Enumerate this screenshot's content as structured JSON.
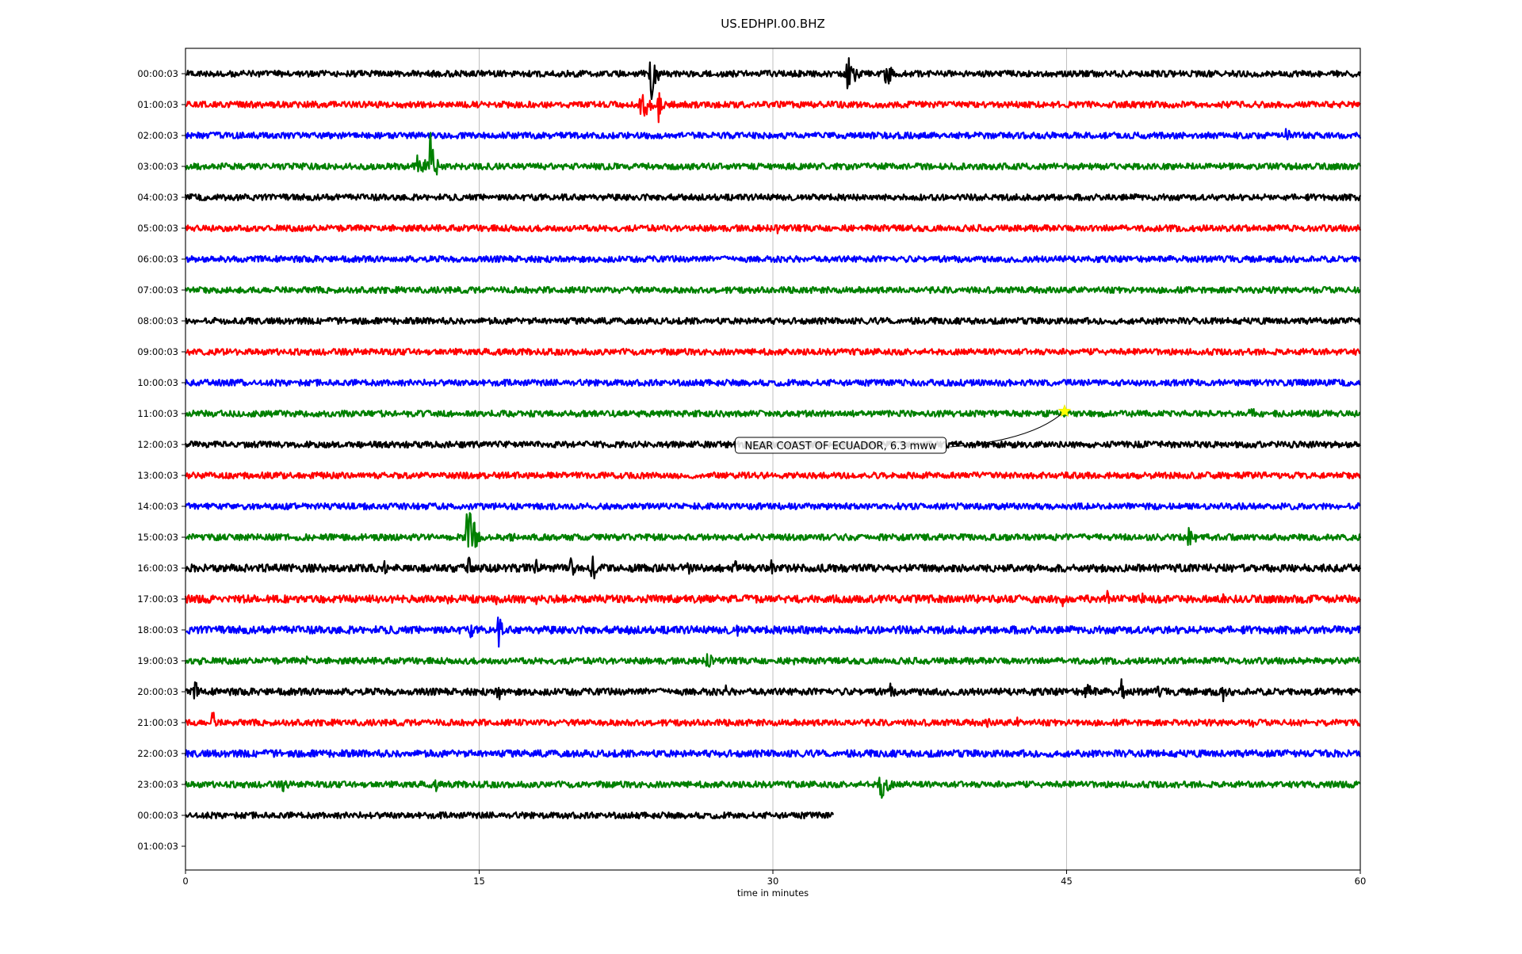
{
  "chart_data": {
    "type": "line",
    "title": "US.EDHPI.00.BHZ",
    "xlabel": "time in minutes",
    "ylabel": "",
    "xlim": [
      0,
      60
    ],
    "xticks": [
      0,
      15,
      30,
      45,
      60
    ],
    "xtick_labels": [
      "0",
      "15",
      "30",
      "45",
      "60"
    ],
    "grid_x": true,
    "legend": "none",
    "row_labels": [
      "00:00:03",
      "01:00:03",
      "02:00:03",
      "03:00:03",
      "04:00:03",
      "05:00:03",
      "06:00:03",
      "07:00:03",
      "08:00:03",
      "09:00:03",
      "10:00:03",
      "11:00:03",
      "12:00:03",
      "13:00:03",
      "14:00:03",
      "15:00:03",
      "16:00:03",
      "17:00:03",
      "18:00:03",
      "19:00:03",
      "20:00:03",
      "21:00:03",
      "22:00:03",
      "23:00:03",
      "00:00:03",
      "01:00:03"
    ],
    "series": [
      {
        "row": 0,
        "color": "#000000",
        "x_end": 60,
        "noise": 0.18,
        "events": [
          {
            "x": 23.8,
            "amp": 1.5,
            "dur": 0.6
          },
          {
            "x": 33.8,
            "amp": 1.2,
            "dur": 0.9
          },
          {
            "x": 35.8,
            "amp": 0.9,
            "dur": 0.6
          }
        ]
      },
      {
        "row": 1,
        "color": "#ff0000",
        "x_end": 60,
        "noise": 0.18,
        "events": [
          {
            "x": 23.3,
            "amp": 1.0,
            "dur": 1.0
          },
          {
            "x": 24.2,
            "amp": 1.4,
            "dur": 0.3
          },
          {
            "x": 45.8,
            "amp": 0.3,
            "dur": 0.5
          }
        ]
      },
      {
        "row": 2,
        "color": "#0000ff",
        "x_end": 60,
        "noise": 0.18,
        "events": [
          {
            "x": 56.2,
            "amp": 0.6,
            "dur": 0.6
          }
        ]
      },
      {
        "row": 3,
        "color": "#008000",
        "x_end": 60,
        "noise": 0.18,
        "events": [
          {
            "x": 11.8,
            "amp": 0.9,
            "dur": 1.2
          },
          {
            "x": 12.5,
            "amp": 2.2,
            "dur": 0.5
          }
        ]
      },
      {
        "row": 4,
        "color": "#000000",
        "x_end": 60,
        "noise": 0.18,
        "events": [
          {
            "x": 23.4,
            "amp": 0.3,
            "dur": 0.2
          }
        ]
      },
      {
        "row": 5,
        "color": "#ff0000",
        "x_end": 60,
        "noise": 0.18,
        "events": [
          {
            "x": 30.3,
            "amp": 0.5,
            "dur": 0.1
          },
          {
            "x": 40.5,
            "amp": 0.25,
            "dur": 0.2
          }
        ]
      },
      {
        "row": 6,
        "color": "#0000ff",
        "x_end": 60,
        "noise": 0.18,
        "events": []
      },
      {
        "row": 7,
        "color": "#008000",
        "x_end": 60,
        "noise": 0.18,
        "events": []
      },
      {
        "row": 8,
        "color": "#000000",
        "x_end": 60,
        "noise": 0.18,
        "events": []
      },
      {
        "row": 9,
        "color": "#ff0000",
        "x_end": 60,
        "noise": 0.18,
        "events": []
      },
      {
        "row": 10,
        "color": "#0000ff",
        "x_end": 60,
        "noise": 0.18,
        "events": []
      },
      {
        "row": 11,
        "color": "#008000",
        "x_end": 60,
        "noise": 0.18,
        "events": [
          {
            "x": 54.3,
            "amp": 0.6,
            "dur": 0.8
          }
        ]
      },
      {
        "row": 12,
        "color": "#000000",
        "x_end": 60,
        "noise": 0.18,
        "events": [
          {
            "x": 36.2,
            "amp": 0.25,
            "dur": 0.2
          }
        ]
      },
      {
        "row": 13,
        "color": "#ff0000",
        "x_end": 60,
        "noise": 0.18,
        "events": []
      },
      {
        "row": 14,
        "color": "#0000ff",
        "x_end": 60,
        "noise": 0.18,
        "events": []
      },
      {
        "row": 15,
        "color": "#008000",
        "x_end": 60,
        "noise": 0.18,
        "events": [
          {
            "x": 14.4,
            "amp": 2.3,
            "dur": 0.8
          },
          {
            "x": 16.5,
            "amp": 0.4,
            "dur": 1.2
          },
          {
            "x": 48.6,
            "amp": 0.4,
            "dur": 0.3
          },
          {
            "x": 51.2,
            "amp": 0.7,
            "dur": 0.9
          }
        ]
      },
      {
        "row": 16,
        "color": "#000000",
        "x_end": 60,
        "noise": 0.22,
        "events": [
          {
            "x": 10.2,
            "amp": 0.7,
            "dur": 0.2
          },
          {
            "x": 14.5,
            "amp": 0.9,
            "dur": 0.2
          },
          {
            "x": 17.9,
            "amp": 0.6,
            "dur": 0.4
          },
          {
            "x": 19.7,
            "amp": 0.7,
            "dur": 0.6
          },
          {
            "x": 20.8,
            "amp": 1.0,
            "dur": 0.4
          },
          {
            "x": 21.6,
            "amp": 0.6,
            "dur": 0.2
          },
          {
            "x": 25.7,
            "amp": 0.5,
            "dur": 0.2
          },
          {
            "x": 28.1,
            "amp": 0.5,
            "dur": 0.2
          },
          {
            "x": 29.9,
            "amp": 0.6,
            "dur": 0.3
          }
        ]
      },
      {
        "row": 17,
        "color": "#ff0000",
        "x_end": 60,
        "noise": 0.22,
        "events": [
          {
            "x": 13.4,
            "amp": 0.5,
            "dur": 0.2
          },
          {
            "x": 15.9,
            "amp": 0.4,
            "dur": 0.2
          },
          {
            "x": 17.9,
            "amp": 0.6,
            "dur": 0.2
          },
          {
            "x": 25.3,
            "amp": 0.6,
            "dur": 0.2
          },
          {
            "x": 44.8,
            "amp": 0.6,
            "dur": 0.2
          },
          {
            "x": 47.1,
            "amp": 0.6,
            "dur": 0.3
          },
          {
            "x": 48.9,
            "amp": 0.4,
            "dur": 0.2
          },
          {
            "x": 53.0,
            "amp": 0.3,
            "dur": 0.2
          }
        ]
      },
      {
        "row": 18,
        "color": "#0000ff",
        "x_end": 60,
        "noise": 0.22,
        "events": [
          {
            "x": 14.6,
            "amp": 0.6,
            "dur": 0.2
          },
          {
            "x": 16.0,
            "amp": 1.0,
            "dur": 0.4
          },
          {
            "x": 18.2,
            "amp": 0.4,
            "dur": 0.2
          },
          {
            "x": 22.7,
            "amp": 0.5,
            "dur": 0.2
          },
          {
            "x": 28.2,
            "amp": 0.5,
            "dur": 0.2
          },
          {
            "x": 31.5,
            "amp": 0.5,
            "dur": 1.2
          },
          {
            "x": 36.5,
            "amp": 0.4,
            "dur": 0.3
          }
        ]
      },
      {
        "row": 19,
        "color": "#008000",
        "x_end": 60,
        "noise": 0.18,
        "events": [
          {
            "x": 0.8,
            "amp": 0.6,
            "dur": 0.2
          },
          {
            "x": 6.2,
            "amp": 0.3,
            "dur": 0.3
          },
          {
            "x": 26.7,
            "amp": 0.9,
            "dur": 0.3
          },
          {
            "x": 31.1,
            "amp": 0.7,
            "dur": 0.2
          },
          {
            "x": 59.9,
            "amp": 0.3,
            "dur": 0.1
          }
        ]
      },
      {
        "row": 20,
        "color": "#000000",
        "x_end": 60,
        "noise": 0.2,
        "events": [
          {
            "x": 0.5,
            "amp": 0.8,
            "dur": 0.3
          },
          {
            "x": 16.0,
            "amp": 0.9,
            "dur": 0.2
          },
          {
            "x": 20.0,
            "amp": 0.4,
            "dur": 0.2
          },
          {
            "x": 27.6,
            "amp": 0.4,
            "dur": 0.3
          },
          {
            "x": 36.0,
            "amp": 0.5,
            "dur": 0.6
          },
          {
            "x": 38.4,
            "amp": 0.4,
            "dur": 0.3
          },
          {
            "x": 46.0,
            "amp": 0.6,
            "dur": 1.2
          },
          {
            "x": 47.8,
            "amp": 1.0,
            "dur": 0.3
          },
          {
            "x": 49.7,
            "amp": 0.6,
            "dur": 0.2
          },
          {
            "x": 53.0,
            "amp": 0.6,
            "dur": 0.4
          }
        ]
      },
      {
        "row": 21,
        "color": "#ff0000",
        "x_end": 60,
        "noise": 0.18,
        "events": [
          {
            "x": 1.4,
            "amp": 0.8,
            "dur": 0.4
          },
          {
            "x": 41.0,
            "amp": 0.5,
            "dur": 0.2
          },
          {
            "x": 42.5,
            "amp": 0.4,
            "dur": 0.2
          },
          {
            "x": 54.5,
            "amp": 0.3,
            "dur": 0.3
          },
          {
            "x": 57.0,
            "amp": 0.5,
            "dur": 0.2
          }
        ]
      },
      {
        "row": 22,
        "color": "#0000ff",
        "x_end": 60,
        "noise": 0.2,
        "events": [
          {
            "x": 15.5,
            "amp": 0.3,
            "dur": 0.3
          },
          {
            "x": 59.0,
            "amp": 0.3,
            "dur": 0.3
          }
        ]
      },
      {
        "row": 23,
        "color": "#008000",
        "x_end": 60,
        "noise": 0.18,
        "events": [
          {
            "x": 5.0,
            "amp": 0.5,
            "dur": 0.6
          },
          {
            "x": 12.8,
            "amp": 0.4,
            "dur": 0.3
          },
          {
            "x": 35.5,
            "amp": 1.2,
            "dur": 0.8
          }
        ]
      },
      {
        "row": 24,
        "color": "#000000",
        "x_end": 33.1,
        "noise": 0.18,
        "events": [
          {
            "x": 19.5,
            "amp": 0.2,
            "dur": 0.4
          }
        ]
      }
    ],
    "event_marker": {
      "x": 44.9,
      "row": 11,
      "marker": "star",
      "color": "#ffff00"
    },
    "annotation": {
      "text": "NEAR COAST OF ECUADOR, 6.3 mww",
      "x": 28.2,
      "row": 12
    }
  }
}
